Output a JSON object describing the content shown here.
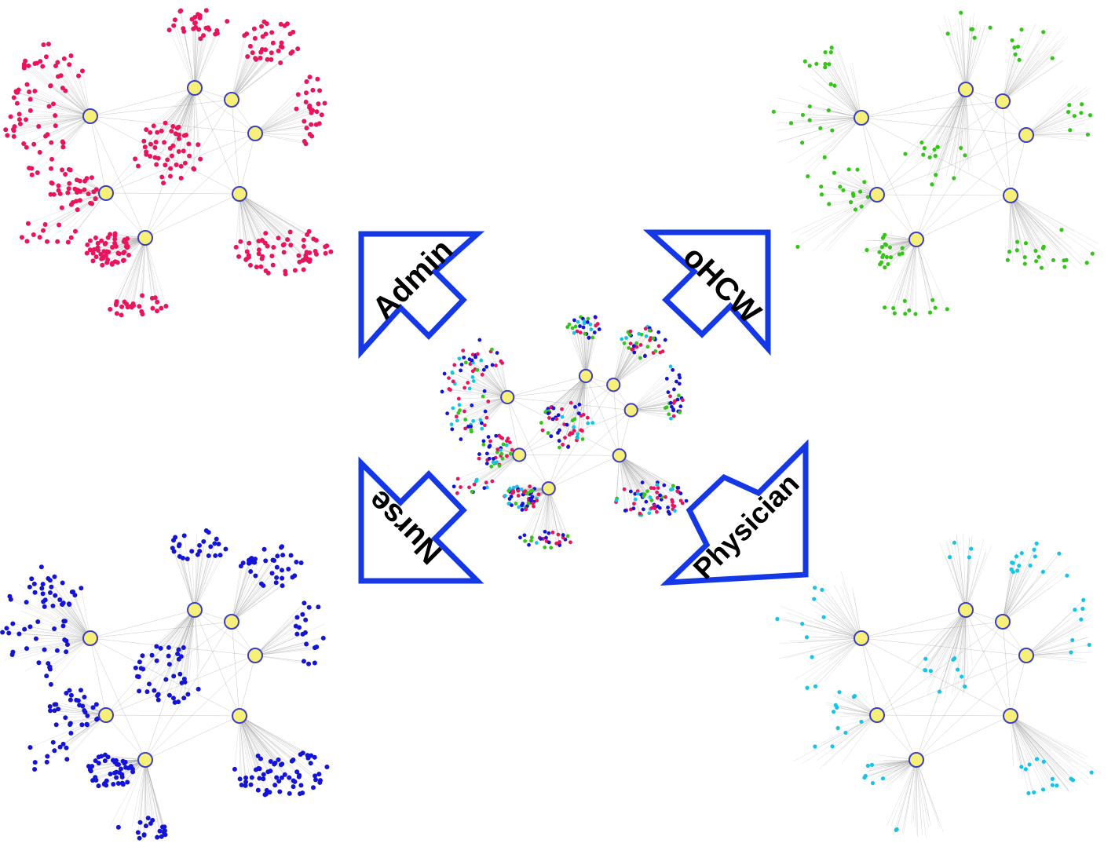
{
  "figure": {
    "arrow_labels": {
      "admin": "Admin",
      "ohcw": "oHCW",
      "nurse": "Nurse",
      "physician": "Physician"
    },
    "colors": {
      "hub_fill": "#f6f07a",
      "hub_stroke": "#3b3fc4",
      "arrow_stroke": "#1438e6",
      "edge": "#9a9a9a",
      "admin": "#e8145e",
      "ohcw": "#35c41a",
      "nurse": "#1414d6",
      "physician": "#16c4e8"
    },
    "networks": [
      {
        "id": "admin",
        "color_key": "admin"
      },
      {
        "id": "ohcw",
        "color_key": "ohcw"
      },
      {
        "id": "nurse",
        "color_key": "nurse"
      },
      {
        "id": "physician",
        "color_key": "physician"
      },
      {
        "id": "combined",
        "color_key": "mixed"
      }
    ]
  }
}
